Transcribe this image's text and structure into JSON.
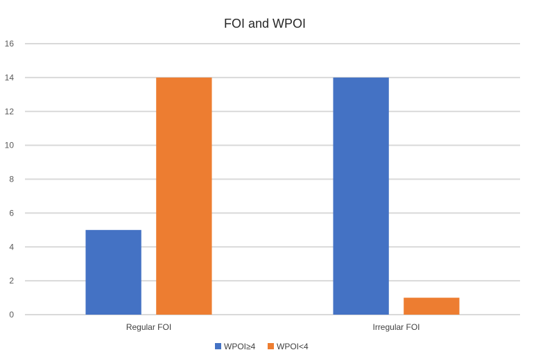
{
  "chart_data": {
    "type": "bar",
    "title": "FOI and WPOI",
    "categories": [
      "Regular FOI",
      "Irregular FOI"
    ],
    "series": [
      {
        "name": "WPOI≥4",
        "values": [
          5,
          14
        ],
        "color": "#4472C4"
      },
      {
        "name": "WPOI<4",
        "values": [
          14,
          1
        ],
        "color": "#ED7D31"
      }
    ],
    "ylim": [
      0,
      16
    ],
    "yticks": [
      "0",
      "2",
      "4",
      "6",
      "8",
      "10",
      "12",
      "14",
      "16"
    ],
    "grid": true,
    "legend_position": "bottom",
    "xlabel": "",
    "ylabel": ""
  }
}
